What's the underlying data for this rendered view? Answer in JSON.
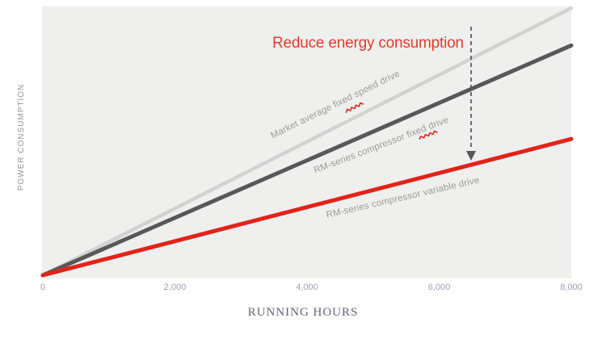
{
  "colors": {
    "page_background": "#ffffff",
    "plot_background": "#efefee",
    "market_line": "#d2d2d2",
    "fixed_line": "#58585a",
    "variable_line": "#e2231a",
    "annotation_red": "#e03b2c",
    "arrow_gray": "#55565a",
    "series_label_gray": "#9a9a9a",
    "tick_label": "#9aa2b5",
    "x_axis_title_color": "#606478",
    "y_axis_title_color": "#8f94a3",
    "squiggle_red": "#e2231a"
  },
  "chart_data": {
    "type": "line",
    "title": "",
    "annotation": "Reduce energy consumption",
    "xlabel": "RUNNING HOURS",
    "ylabel": "POWER CONSUMPTION",
    "x_ticks": [
      "0",
      "2,000",
      "4,000",
      "6,000",
      "8,000"
    ],
    "x_range": [
      0,
      8000
    ],
    "y_range_relative": [
      0,
      100
    ],
    "grid": "off",
    "legend_position": "labels-along-lines",
    "series": [
      {
        "name": "Market average fixed speed drive",
        "color": "#d2d2d2",
        "x": [
          0,
          8000
        ],
        "values": [
          0,
          100
        ],
        "line_width": 4.5
      },
      {
        "name": "RM-series compressor fixed drive",
        "color": "#58585a",
        "x": [
          0,
          8000
        ],
        "values": [
          0,
          86
        ],
        "line_width": 5
      },
      {
        "name": "RM-series compressor variable drive",
        "color": "#e2231a",
        "x": [
          0,
          8000
        ],
        "values": [
          0,
          51
        ],
        "line_width": 5
      }
    ]
  }
}
